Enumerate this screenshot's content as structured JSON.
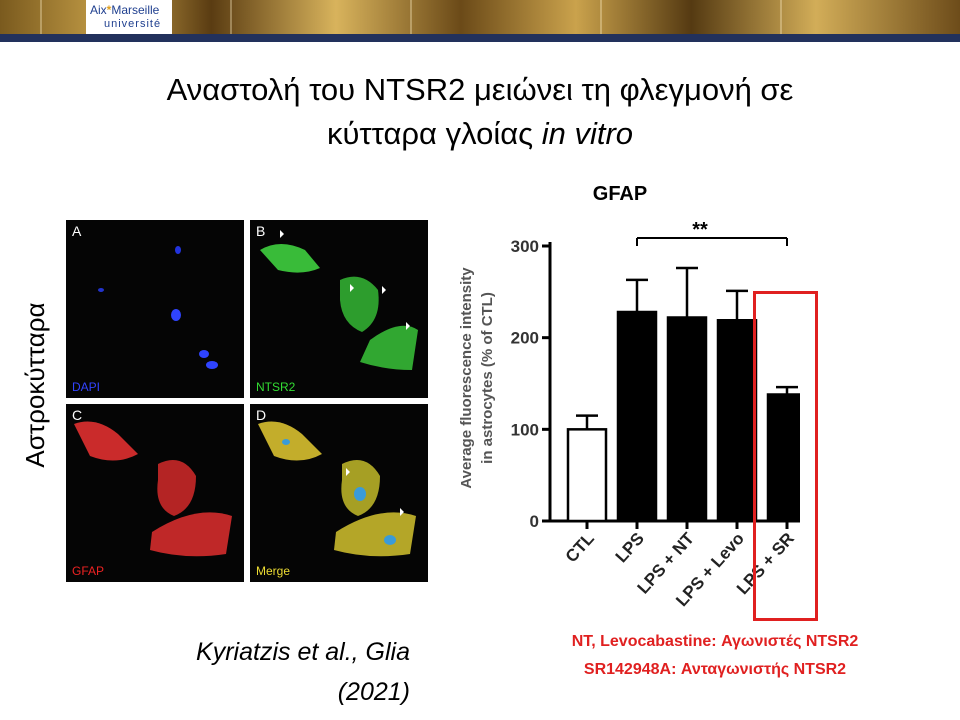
{
  "header": {
    "logo_line1_a": "Aix",
    "logo_line1_b": "Marseille",
    "logo_line2": "université",
    "logo_star": "*"
  },
  "title": {
    "line1": "Αναστολή του NTSR2 μειώνει τη φλεγμονή σε",
    "line2_plain": "κύτταρα γλοίας",
    "line2_italic": "in vitro"
  },
  "side_label": "Αστροκύτταρα",
  "microscopy": {
    "panels": [
      {
        "letter": "A",
        "caption": "DAPI",
        "caption_color": "#3344ff"
      },
      {
        "letter": "B",
        "caption": "NTSR2",
        "caption_color": "#33dd33"
      },
      {
        "letter": "C",
        "caption": "GFAP",
        "caption_color": "#ee2222"
      },
      {
        "letter": "D",
        "caption": "Merge",
        "caption_color": "#eedd33"
      }
    ]
  },
  "chart_data": {
    "type": "bar",
    "title": "GFAP",
    "ylabel_line1": "Average fluorescence intensity",
    "ylabel_line2": "in astrocytes (% of CTL)",
    "categories": [
      "CTL",
      "LPS",
      "LPS + NT",
      "LPS + Levo",
      "LPS + SR"
    ],
    "values": [
      100,
      228,
      222,
      219,
      138
    ],
    "errors": [
      15,
      35,
      54,
      32,
      8
    ],
    "fills": [
      "#ffffff",
      "#000000",
      "#000000",
      "#000000",
      "#000000"
    ],
    "yticks": [
      0,
      100,
      200,
      300
    ],
    "ylim": [
      0,
      300
    ],
    "significance": {
      "from": "LPS",
      "to": "LPS + SR",
      "label": "**"
    },
    "highlight_category": "LPS + SR",
    "highlight_color": "#e02020"
  },
  "citation": {
    "line1": "Kyriatzis et al., Glia",
    "line2": "(2021)"
  },
  "notes": {
    "line1": "NT, Levocabastine: Αγωνιστές NTSR2",
    "line2": "SR142948A: Ανταγωνιστής NTSR2"
  }
}
